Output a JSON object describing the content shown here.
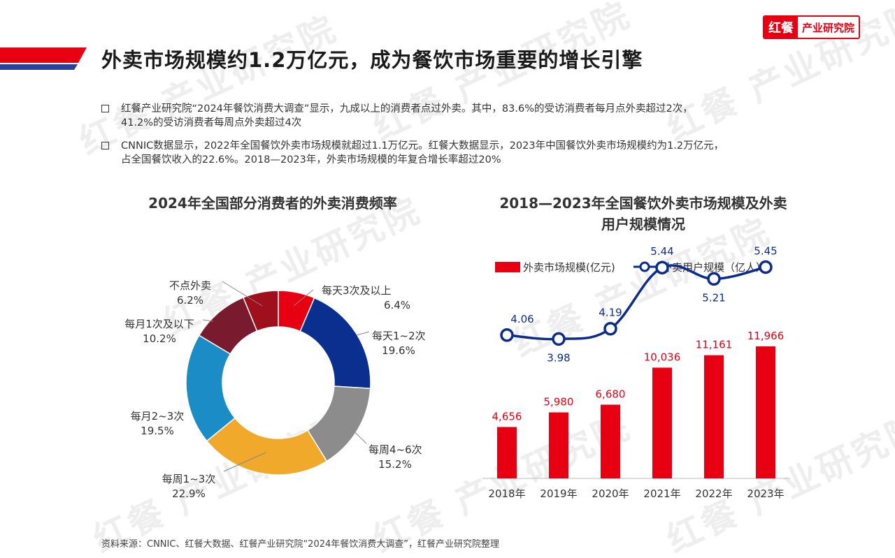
{
  "brand": {
    "logo_mark": "红餐",
    "logo_text": "产业研究院",
    "watermark": "红餐 产业研究院"
  },
  "colors": {
    "red": "#e60012",
    "navy": "#0b2c8c",
    "stripe_blue": "#2a3f98",
    "donut": [
      "#e60012",
      "#0b2f8f",
      "#8c8c8c",
      "#f0a92a",
      "#1b8cc6",
      "#7a1a2e",
      "#a0101c"
    ]
  },
  "header": {
    "title": "外卖市场规模约1.2万亿元，成为餐饮市场重要的增长引擎"
  },
  "bullets": [
    {
      "line1": "红餐产业研究院“2024年餐饮消费大调查”显示，九成以上的消费者点过外卖。其中，83.6%的受访消费者每月点外卖超过2次，",
      "line2": "41.2%的受访消费者每周点外卖超过4次"
    },
    {
      "line1": "CNNIC数据显示，2022年全国餐饮外卖市场规模就超过1.1万亿元。红餐大数据显示，2023年中国餐饮外卖市场规模约为1.2万亿元，",
      "line2": "占全国餐饮收入的22.6%。2018—2023年，外卖市场规模的年复合增长率超过20%"
    }
  ],
  "chart_data": [
    {
      "type": "pie",
      "title": "2024年全国部分消费者的外卖消费频率",
      "labels": [
        "每天3次及以上",
        "每天1~2次",
        "每周4~6次",
        "每周1~3次",
        "每月2~3次",
        "每月1次及以下",
        "不点外卖"
      ],
      "values": [
        6.4,
        19.6,
        15.2,
        22.9,
        19.5,
        10.2,
        6.2
      ],
      "value_labels": [
        "6.4%",
        "19.6%",
        "15.2%",
        "22.9%",
        "19.5%",
        "10.2%",
        "6.2%"
      ],
      "donut": true
    },
    {
      "type": "bar",
      "title": "2018—2023年全国餐饮外卖市场规模及外卖用户规模情况",
      "categories": [
        "2018年",
        "2019年",
        "2020年",
        "2021年",
        "2022年",
        "2023年"
      ],
      "series": [
        {
          "name": "外卖市场规模(亿元)",
          "type": "bar",
          "values": [
            4656,
            5980,
            6680,
            10036,
            11161,
            11966
          ],
          "labels": [
            "4,656",
            "5,980",
            "6,680",
            "10,036",
            "11,161",
            "11,966"
          ]
        },
        {
          "name": "外卖用户规模（亿人）",
          "type": "line",
          "values": [
            4.06,
            3.98,
            4.19,
            5.44,
            5.21,
            5.45
          ],
          "labels": [
            "4.06",
            "3.98",
            "4.19",
            "5.44",
            "5.21",
            "5.45"
          ]
        }
      ],
      "legend": "top"
    }
  ],
  "source": {
    "text": "资料来源：CNNIC、红餐大数据、红餐产业研究院“2024年餐饮消费大调查”，红餐产业研究院整理"
  }
}
